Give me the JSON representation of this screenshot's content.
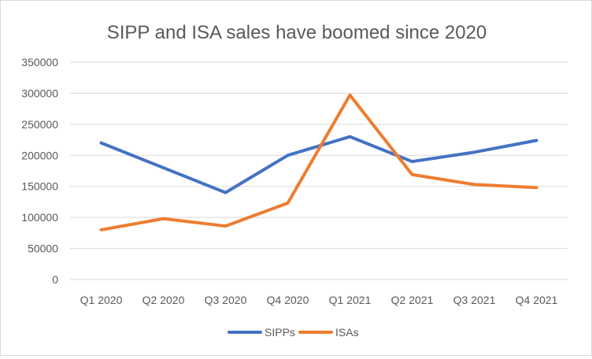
{
  "chart_data": {
    "type": "line",
    "title": "SIPP and ISA sales have boomed since 2020",
    "xlabel": "",
    "ylabel": "",
    "categories": [
      "Q1 2020",
      "Q2 2020",
      "Q3 2020",
      "Q4 2020",
      "Q1 2021",
      "Q2 2021",
      "Q3 2021",
      "Q4 2021"
    ],
    "ylim": [
      0,
      350000
    ],
    "yticks": [
      0,
      50000,
      100000,
      150000,
      200000,
      250000,
      300000,
      350000
    ],
    "ytick_labels": [
      "0",
      "50000",
      "100000",
      "150000",
      "200000",
      "250000",
      "300000",
      "350000"
    ],
    "grid": true,
    "legend": "bottom",
    "series": [
      {
        "name": "SIPPs",
        "color": "#4472C4",
        "values": [
          220000,
          180000,
          140000,
          200000,
          230000,
          190000,
          205000,
          224000
        ]
      },
      {
        "name": "ISAs",
        "color": "#ED7D31",
        "values": [
          80000,
          98000,
          86000,
          123000,
          297000,
          169000,
          153000,
          148000
        ]
      }
    ]
  }
}
